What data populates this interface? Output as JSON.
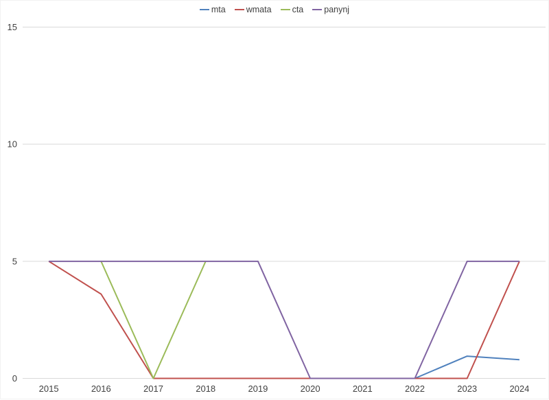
{
  "chart_data": {
    "type": "line",
    "title": "",
    "xlabel": "",
    "ylabel": "",
    "x_categories": [
      "2015",
      "2016",
      "2017",
      "2018",
      "2019",
      "2020",
      "2021",
      "2022",
      "2023",
      "2024"
    ],
    "y_ticks": [
      0,
      5,
      10,
      15
    ],
    "ylim": [
      0,
      15
    ],
    "grid": "horizontal gridlines on",
    "legend_position": "top-center",
    "series": [
      {
        "name": "mta",
        "color": "#4F81BD",
        "values": [
          null,
          null,
          null,
          null,
          null,
          null,
          null,
          0,
          0.95,
          0.8
        ]
      },
      {
        "name": "wmata",
        "color": "#C0504D",
        "values": [
          5,
          3.6,
          0,
          0,
          0,
          0,
          0,
          0,
          0,
          5
        ]
      },
      {
        "name": "cta",
        "color": "#9BBB59",
        "values": [
          null,
          5,
          0,
          5,
          null,
          null,
          null,
          null,
          null,
          null
        ]
      },
      {
        "name": "panynj",
        "color": "#8064A2",
        "values": [
          5,
          5,
          5,
          5,
          5,
          0,
          0,
          0,
          5,
          5
        ]
      }
    ]
  },
  "colors": {
    "background": "#FFFFFF",
    "gridline": "#D9D9D9",
    "axis_text": "#404040",
    "frame": "#F2F2F2"
  }
}
